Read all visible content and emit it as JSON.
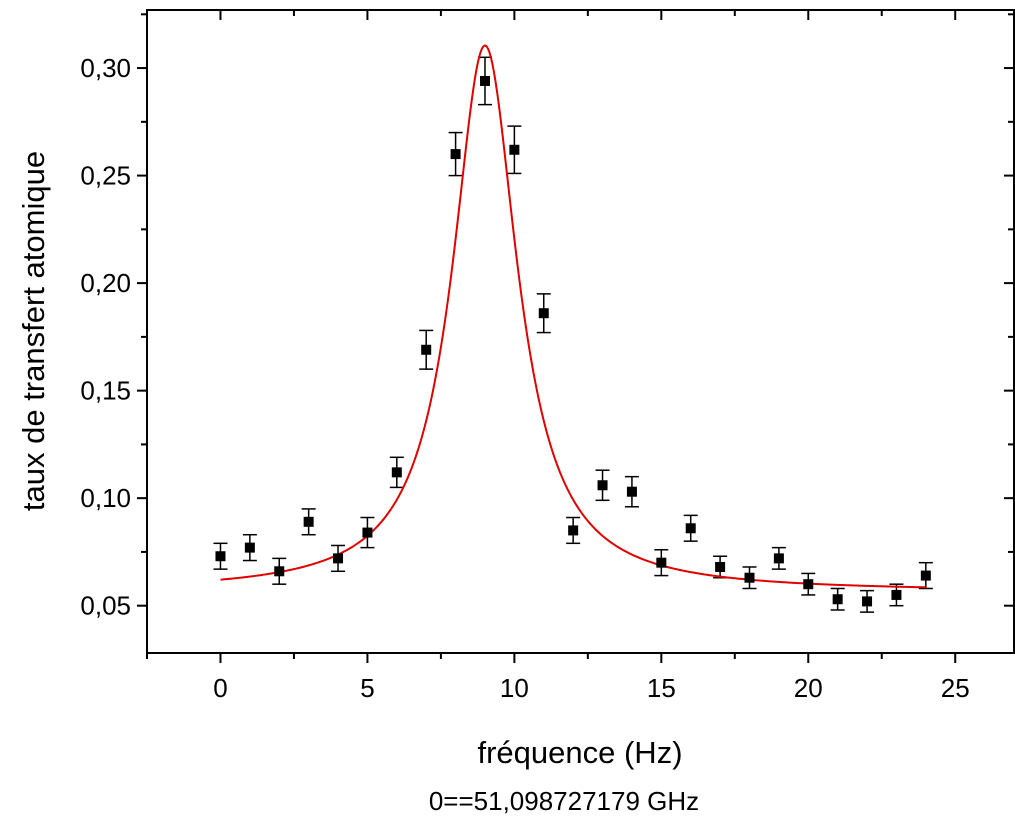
{
  "chart_data": {
    "type": "scatter",
    "title": "",
    "xlabel": "fréquence (Hz)",
    "ylabel": "taux de transfert atomique",
    "note": "0==51,098727179 GHz",
    "xlim": [
      -2.5,
      27
    ],
    "ylim": [
      0.028,
      0.327
    ],
    "xticks": [
      0,
      5,
      10,
      15,
      20,
      25
    ],
    "xtick_labels": [
      "0",
      "5",
      "10",
      "15",
      "20",
      "25"
    ],
    "yticks": [
      0.05,
      0.1,
      0.15,
      0.2,
      0.25,
      0.3
    ],
    "ytick_labels": [
      "0,05",
      "0,10",
      "0,15",
      "0,20",
      "0,25",
      "0,30"
    ],
    "grid": false,
    "series": [
      {
        "marker": "square",
        "color": "#000000",
        "x": [
          0,
          1,
          2,
          3,
          4,
          5,
          6,
          7,
          8,
          9,
          10,
          11,
          12,
          13,
          14,
          15,
          16,
          17,
          18,
          19,
          20,
          21,
          22,
          23,
          24
        ],
        "y": [
          0.073,
          0.077,
          0.066,
          0.089,
          0.072,
          0.084,
          0.112,
          0.169,
          0.26,
          0.294,
          0.262,
          0.186,
          0.085,
          0.106,
          0.103,
          0.07,
          0.086,
          0.068,
          0.063,
          0.072,
          0.06,
          0.053,
          0.052,
          0.055,
          0.064
        ],
        "yerr": [
          0.006,
          0.006,
          0.006,
          0.006,
          0.006,
          0.007,
          0.007,
          0.009,
          0.01,
          0.011,
          0.011,
          0.009,
          0.006,
          0.007,
          0.007,
          0.006,
          0.006,
          0.005,
          0.005,
          0.005,
          0.005,
          0.005,
          0.005,
          0.005,
          0.006
        ]
      },
      {
        "type": "line",
        "color": "#e00000",
        "fit": "lorentzian",
        "baseline": 0.0565,
        "amplitude": 0.254,
        "center": 9.0,
        "hwhm": 1.35,
        "x_range": [
          0,
          24
        ]
      }
    ]
  }
}
